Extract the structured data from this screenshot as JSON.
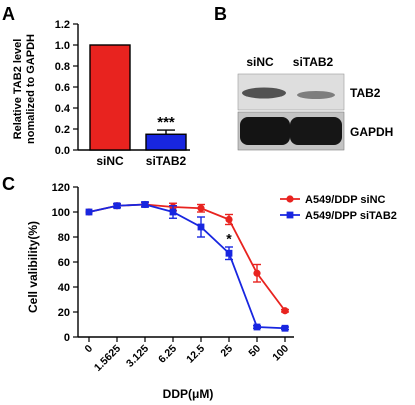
{
  "panels": {
    "a": "A",
    "b": "B",
    "c": "C"
  },
  "colors": {
    "red": "#e8231f",
    "blue": "#1826e0",
    "black": "#000000"
  },
  "chart_data": [
    {
      "type": "bar",
      "panel": "A",
      "categories": [
        "siNC",
        "siTAB2"
      ],
      "values": [
        1.0,
        0.15
      ],
      "errors": [
        0.0,
        0.04
      ],
      "colors": [
        "#e8231f",
        "#1826e0"
      ],
      "ylabel": "Relative TAB2 level\nnomalized to GAPDH",
      "ylim": [
        0.0,
        1.2
      ],
      "yticks": [
        "0.0",
        "0.2",
        "0.4",
        "0.6",
        "0.8",
        "1.0",
        "1.2"
      ],
      "annotation": "***",
      "grid": false
    },
    {
      "type": "line",
      "panel": "C",
      "categories": [
        "0",
        "1.5625",
        "3.125",
        "6.25",
        "12.5",
        "25",
        "50",
        "100"
      ],
      "xlabel": "DDP(μM)",
      "ylabel": "Cell valibility(%)",
      "ylim": [
        0,
        120
      ],
      "yticks": [
        "0",
        "20",
        "40",
        "60",
        "80",
        "100",
        "120"
      ],
      "legend_position": "top-right",
      "annotation": "*",
      "grid": false,
      "series": [
        {
          "name": "A549/DDP siNC",
          "color": "#e8231f",
          "marker": "circle",
          "values": [
            100,
            105,
            106,
            104,
            103,
            94,
            51,
            21
          ],
          "errors": [
            0,
            1.5,
            1.5,
            3,
            3,
            4,
            7,
            1
          ]
        },
        {
          "name": "A549/DPP siTAB2",
          "color": "#1826e0",
          "marker": "square",
          "values": [
            100,
            105,
            106,
            100,
            88,
            67,
            8,
            7
          ],
          "errors": [
            0,
            1.5,
            2,
            5,
            8,
            5,
            1,
            1
          ]
        }
      ]
    }
  ],
  "blot": {
    "lanes": [
      "siNC",
      "siTAB2"
    ],
    "bands": [
      "TAB2",
      "GAPDH"
    ]
  }
}
